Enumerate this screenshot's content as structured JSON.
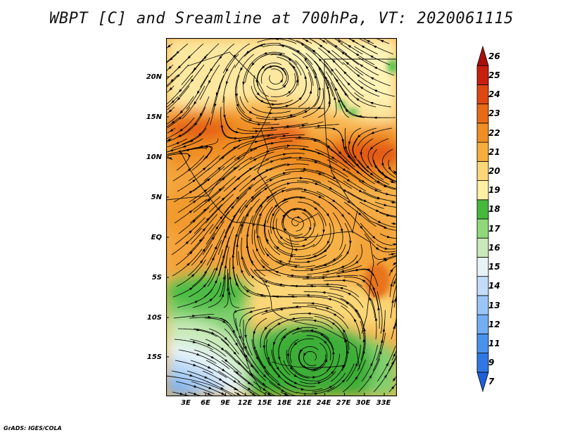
{
  "title": "WBPT [C] and Sreamline at 700hPa, VT: 2020061115",
  "credit": "GrADS: IGES/COLA",
  "map": {
    "lat_labels": [
      "20N",
      "15N",
      "10N",
      "5N",
      "EQ",
      "5S",
      "10S",
      "15S"
    ],
    "lon_labels": [
      "3E",
      "6E",
      "9E",
      "12E",
      "15E",
      "18E",
      "21E",
      "24E",
      "27E",
      "30E",
      "33E"
    ],
    "lon_range": [
      0,
      35.5
    ],
    "lat_range": [
      -19.5,
      24.5
    ]
  },
  "colorbar": {
    "levels": [
      "7",
      "9",
      "11",
      "12",
      "13",
      "14",
      "15",
      "16",
      "17",
      "18",
      "19",
      "20",
      "21",
      "22",
      "23",
      "24",
      "25",
      "26"
    ],
    "colors": [
      "#1f5fd8",
      "#2f78e4",
      "#4a93ec",
      "#73aef3",
      "#9ac6f7",
      "#c2dcfa",
      "#e6f4f6",
      "#c9eab8",
      "#8fd97a",
      "#46b83c",
      "#fff0a4",
      "#fbd777",
      "#f6ad3d",
      "#ef8e24",
      "#e86a16",
      "#de4712",
      "#c8200c",
      "#a8100c"
    ],
    "units": "C"
  }
}
